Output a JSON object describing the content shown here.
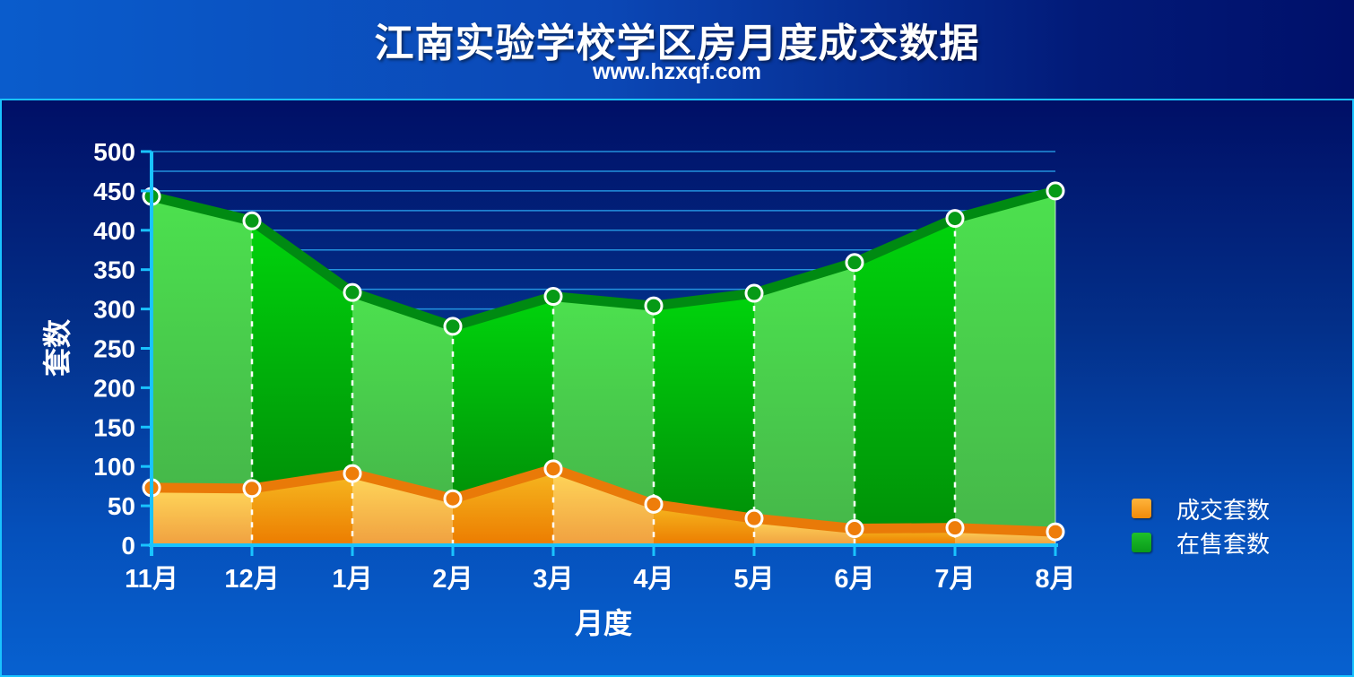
{
  "header": {
    "title": "江南实验学校学区房月度成交数据",
    "subtitle": "www.hzxqf.com"
  },
  "colors": {
    "sold": "#f08a0a",
    "listed": "#0a9a1a",
    "grid": "#2aa6f0",
    "axis": "#19c3ff"
  },
  "legend": {
    "sold_label": "成交套数",
    "listed_label": "在售套数"
  },
  "chart_data": {
    "type": "area",
    "title": "江南实验学校学区房月度成交数据",
    "subtitle": "www.hzxqf.com",
    "xlabel": "月度",
    "ylabel": "套数",
    "categories": [
      "11月",
      "12月",
      "1月",
      "2月",
      "3月",
      "4月",
      "5月",
      "6月",
      "7月",
      "8月"
    ],
    "ylim": [
      0,
      500
    ],
    "yticks": [
      "0",
      "50",
      "100",
      "150",
      "200",
      "250",
      "300",
      "350",
      "400",
      "450",
      "500"
    ],
    "grid": "horizontal",
    "legend_position": "right",
    "series": [
      {
        "name": "成交套数",
        "values": [
          73,
          72,
          91,
          59,
          97,
          52,
          34,
          21,
          22,
          17
        ]
      },
      {
        "name": "在售套数",
        "values": [
          443,
          412,
          321,
          278,
          316,
          304,
          320,
          359,
          415,
          450
        ]
      }
    ]
  }
}
